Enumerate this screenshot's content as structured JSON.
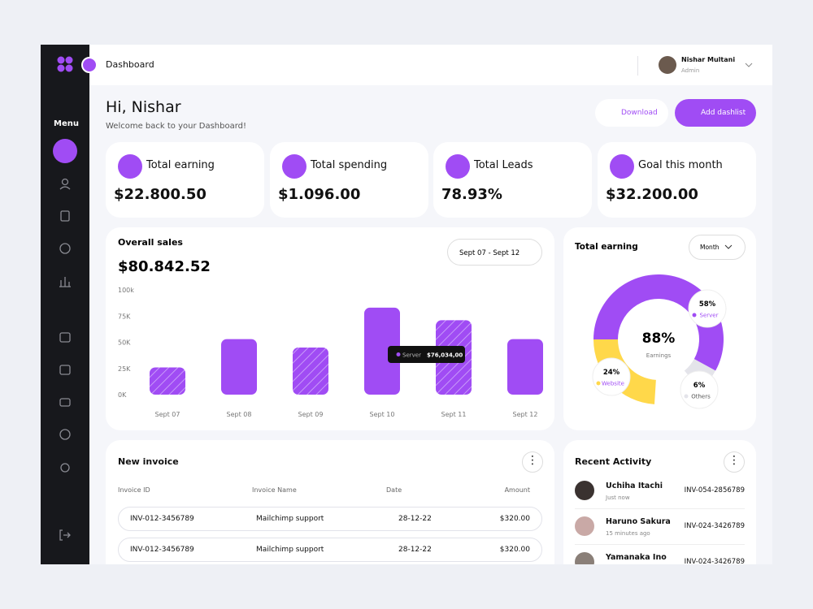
{
  "sidebar": {
    "menu": "Menu"
  },
  "header": {
    "title": "Dashboard",
    "user_name": "Nishar Multani",
    "user_role": "Admin"
  },
  "greeting": {
    "title": "Hi, Nishar",
    "subtitle": "Welcome back to your Dashboard!",
    "download": "Download",
    "add": "Add dashlist"
  },
  "stats": [
    {
      "label": "Total earning",
      "value": "$22.800.50"
    },
    {
      "label": "Total spending",
      "value": "$1.096.00"
    },
    {
      "label": "Total Leads",
      "value": "78.93%"
    },
    {
      "label": "Goal this month",
      "value": "$32.200.00"
    }
  ],
  "chart_data": [
    {
      "type": "bar",
      "title": "Overall sales",
      "total": "$80.842.52",
      "date_range": "Sept 07 - Sept 12",
      "categories": [
        "Sept 07",
        "Sept 08",
        "Sept 09",
        "Sept 10",
        "Sept 11",
        "Sept 12"
      ],
      "values": [
        26000,
        53000,
        45000,
        83000,
        71000,
        53000
      ],
      "hatched": [
        true,
        false,
        true,
        false,
        true,
        false
      ],
      "color": "#a04cf4",
      "ylim": [
        0,
        100000
      ],
      "yticks": [
        {
          "value": 0,
          "label": "0K"
        },
        {
          "value": 25000,
          "label": "25K"
        },
        {
          "value": 50000,
          "label": "50K"
        },
        {
          "value": 75000,
          "label": "75K"
        },
        {
          "value": 100000,
          "label": "100k"
        }
      ],
      "tooltip": {
        "series": "Server",
        "value": "$76,034,00"
      }
    },
    {
      "type": "pie",
      "title": "Total earning",
      "period": "Month",
      "center_value": "88%",
      "center_label": "Earnings",
      "categories": [
        "Server",
        "Website",
        "Others"
      ],
      "values": [
        58,
        24,
        6
      ],
      "value_labels": [
        "58%",
        "24%",
        "6%"
      ],
      "colors": [
        "#a04cf4",
        "#ffd84a",
        "#e4e4ea"
      ]
    }
  ],
  "invoice": {
    "title": "New invoice",
    "columns": [
      "Invoice ID",
      "Invoice Name",
      "Date",
      "Amount"
    ],
    "rows": [
      [
        "INV-012-3456789",
        "Mailchimp support",
        "28-12-22",
        "$320.00"
      ],
      [
        "INV-012-3456789",
        "Mailchimp support",
        "28-12-22",
        "$320.00"
      ]
    ]
  },
  "activity": {
    "title": "Recent Activity",
    "items": [
      {
        "name": "Uchiha Itachi",
        "time": "Just now",
        "id": "INV-054-2856789"
      },
      {
        "name": "Haruno Sakura",
        "time": "15 minutes ago",
        "id": "INV-024-3426789"
      },
      {
        "name": "Yamanaka Ino",
        "id": "INV-024-3426789"
      }
    ]
  }
}
